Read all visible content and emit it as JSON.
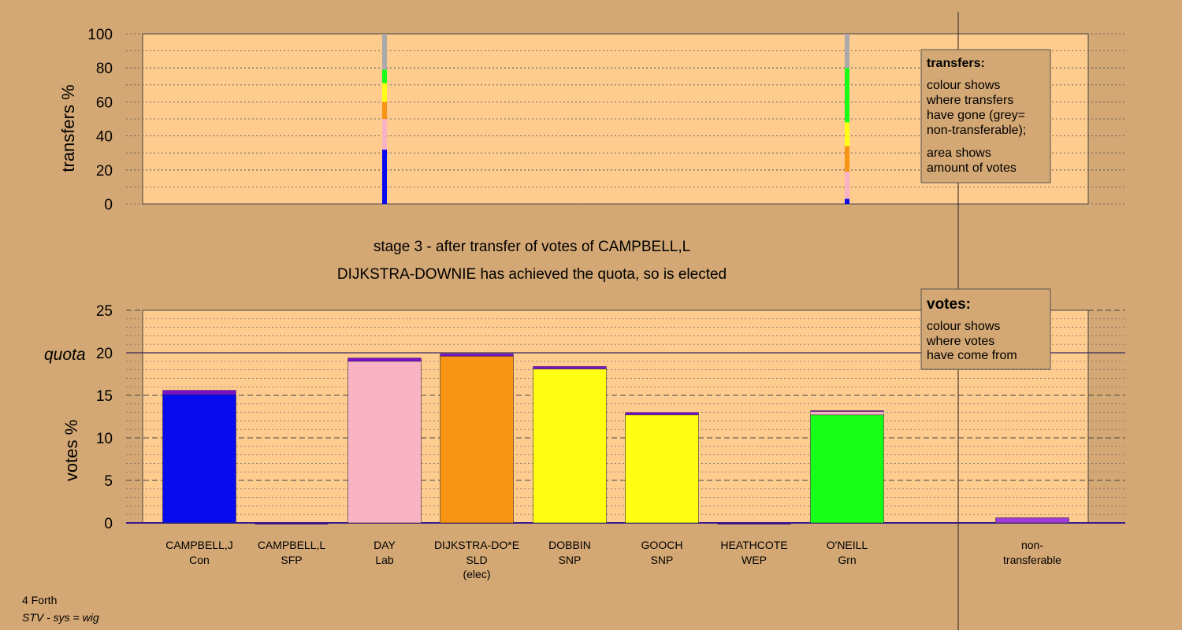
{
  "footer": {
    "area": "4 Forth",
    "system": "STV - sys = wig"
  },
  "chart_data": [
    {
      "type": "bar",
      "name": "transfers",
      "ylabel": "transfers %",
      "ylim": [
        0,
        100
      ],
      "yticks": [
        0,
        20,
        40,
        60,
        80,
        100
      ],
      "transfer_columns": [
        {
          "column": 2,
          "segments": [
            {
              "to": "CAMPBELL,J",
              "color": "#0a0aee",
              "value": 32
            },
            {
              "to": "DAY",
              "color": "#f8b4c4",
              "value": 18
            },
            {
              "to": "DIJKSTRA-DO*E",
              "color": "#f79414",
              "value": 10
            },
            {
              "to": "DOBBIN",
              "color": "#ffff14",
              "value": 6
            },
            {
              "to": "GOOCH",
              "color": "#ffff14",
              "value": 5
            },
            {
              "to": "O'NEILL",
              "color": "#18ff18",
              "value": 8
            },
            {
              "to": "non-transferable",
              "color": "#aaaaaa",
              "value": 21
            }
          ]
        },
        {
          "column": 7,
          "segments": [
            {
              "to": "CAMPBELL,J",
              "color": "#0a0aee",
              "value": 3
            },
            {
              "to": "DAY",
              "color": "#f8b4c4",
              "value": 16
            },
            {
              "to": "DIJKSTRA-DO*E",
              "color": "#f79414",
              "value": 15
            },
            {
              "to": "DOBBIN",
              "color": "#ffff14",
              "value": 7
            },
            {
              "to": "GOOCH",
              "color": "#ffff14",
              "value": 7
            },
            {
              "to": "O'NEILL",
              "color": "#18ff18",
              "value": 32
            },
            {
              "to": "non-transferable",
              "color": "#aaaaaa",
              "value": 20
            }
          ]
        }
      ],
      "legend": {
        "title": "transfers:",
        "lines": [
          "colour shows",
          "where transfers",
          "have gone (grey=",
          "non-transferable);"
        ],
        "lines2": [
          "area shows",
          "amount of votes"
        ]
      }
    },
    {
      "type": "bar",
      "name": "votes",
      "title": "stage 3 - after transfer of votes of CAMPBELL,L",
      "subtitle": "DIJKSTRA-DOWNIE has achieved the quota, so is elected",
      "ylabel": "votes %",
      "ylim": [
        0,
        25
      ],
      "yticks": [
        0,
        5,
        10,
        15,
        20,
        25
      ],
      "quota": 20,
      "quota_label": "quota",
      "candidates": [
        {
          "name": "CAMPBELL,J",
          "party": "Con",
          "note": "",
          "color": "#0a0aee",
          "base": 15.1,
          "extra": [
            {
              "color": "#7a10c8",
              "value": 0.5
            }
          ]
        },
        {
          "name": "CAMPBELL,L",
          "party": "SFP",
          "note": "",
          "color": "#3a1a8a",
          "base": 0.0,
          "extra": []
        },
        {
          "name": "DAY",
          "party": "Lab",
          "note": "",
          "color": "#f8b4c4",
          "base": 19.0,
          "extra": [
            {
              "color": "#7a10c8",
              "value": 0.4
            }
          ]
        },
        {
          "name": "DIJKSTRA-DO*E",
          "party": "SLD",
          "note": "(elec)",
          "color": "#f79414",
          "base": 19.6,
          "extra": [
            {
              "color": "#7a10c8",
              "value": 0.3
            }
          ]
        },
        {
          "name": "DOBBIN",
          "party": "SNP",
          "note": "",
          "color": "#ffff14",
          "base": 18.1,
          "extra": [
            {
              "color": "#7a10c8",
              "value": 0.3
            }
          ]
        },
        {
          "name": "GOOCH",
          "party": "SNP",
          "note": "",
          "color": "#ffff14",
          "base": 12.7,
          "extra": [
            {
              "color": "#7a10c8",
              "value": 0.3
            }
          ]
        },
        {
          "name": "HEATHCOTE",
          "party": "WEP",
          "note": "",
          "color": "#3a1a8a",
          "base": 0.0,
          "extra": []
        },
        {
          "name": "O'NEILL",
          "party": "Grn",
          "note": "",
          "color": "#18ff18",
          "base": 12.7,
          "extra": [
            {
              "color": "#f8b4c4",
              "value": 0.4
            },
            {
              "color": "#7a10c8",
              "value": 0.1
            }
          ]
        }
      ],
      "nontransferable": {
        "label1": "non-",
        "label2": "transferable",
        "value": 0.6,
        "color": "#a03ad8"
      },
      "legend": {
        "title": "votes:",
        "lines": [
          "colour shows",
          "where votes",
          "have come from"
        ]
      }
    }
  ]
}
